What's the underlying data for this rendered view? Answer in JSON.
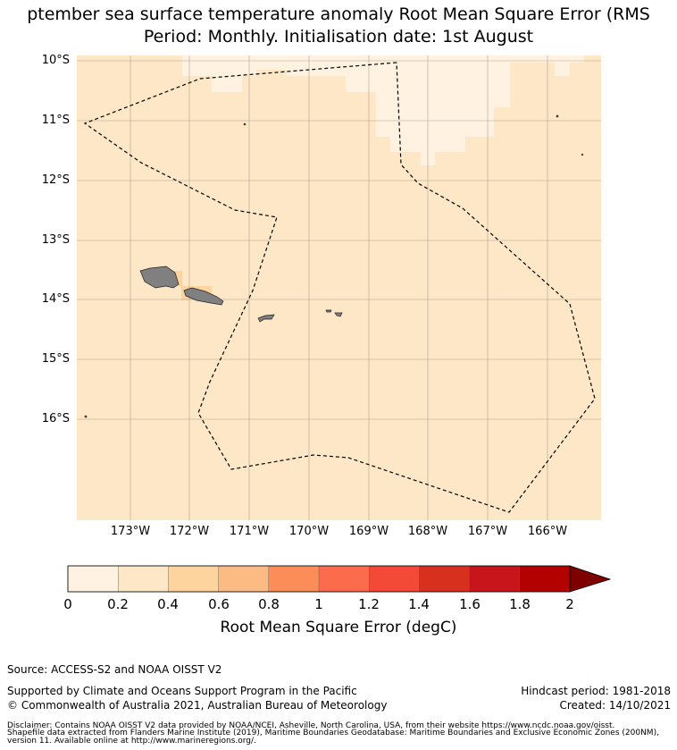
{
  "title": {
    "line1": "ptember sea surface temperature anomaly Root Mean Square Error (RMS",
    "line2": "Period: Monthly. Initialisation date: 1st August"
  },
  "map": {
    "lat_labels": [
      "10°S",
      "11°S",
      "12°S",
      "13°S",
      "14°S",
      "15°S",
      "16°S"
    ],
    "lon_labels": [
      "173°W",
      "172°W",
      "171°W",
      "170°W",
      "169°W",
      "168°W",
      "167°W",
      "166°W"
    ],
    "colors": {
      "background": "#fee7c6",
      "low": "#fff2e0",
      "mid": "#fdd49e",
      "land": "#808080",
      "grid": "#b0a090"
    }
  },
  "colorbar": {
    "ticks": [
      "0",
      "0.2",
      "0.4",
      "0.6",
      "0.8",
      "1",
      "1.2",
      "1.4",
      "1.6",
      "1.8",
      "2"
    ],
    "colors": [
      "#fff2e0",
      "#fee7c6",
      "#fdd49e",
      "#fdbb84",
      "#fc8d59",
      "#fc6b4b",
      "#f24a37",
      "#d7301f",
      "#c8141b",
      "#b30000",
      "#7f0000"
    ],
    "label": "Root Mean Square Error (degC)"
  },
  "footer": {
    "source": "Source: ACCESS-S2 and NOAA OISST V2",
    "supported": "Supported by Climate and Oceans Support Program in the Pacific",
    "copyright": "© Commonwealth of Australia 2021, Australian Bureau of Meteorology",
    "hindcast": "Hindcast period: 1981-2018",
    "created": "Created: 14/10/2021",
    "disclaimer1": "Disclaimer: Contains NOAA OISST V2 data provided by NOAA/NCEI, Asheville, North Carolina, USA, from their website https://www.ncdc.noaa.gov/oisst.",
    "disclaimer2": "Shapefile data extracted from Flanders Marine Institute (2019), Maritime Boundaries Geodatabase: Maritime Boundaries and Exclusive Economic Zones (200NM),",
    "disclaimer3": "version 11. Available online at http://www.marineregions.org/."
  }
}
